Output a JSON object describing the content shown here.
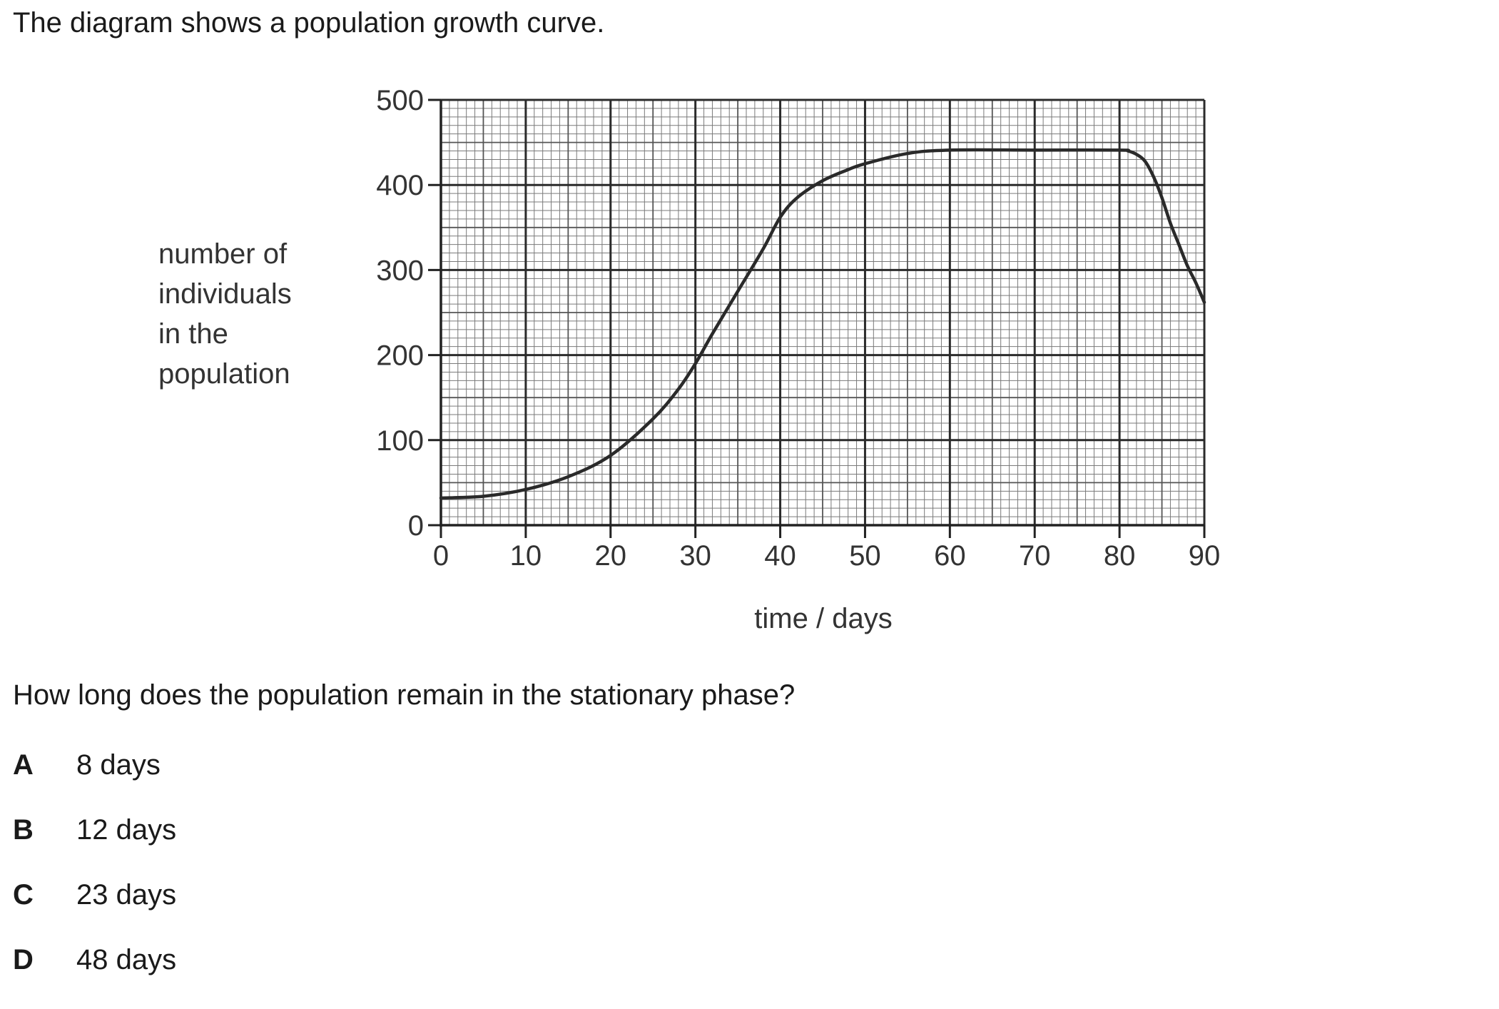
{
  "question": {
    "intro": "The diagram shows a population growth curve.",
    "prompt": "How long does the population remain in the stationary phase?",
    "options": [
      {
        "letter": "A",
        "text": "8 days"
      },
      {
        "letter": "B",
        "text": "12 days"
      },
      {
        "letter": "C",
        "text": "23 days"
      },
      {
        "letter": "D",
        "text": "48 days"
      }
    ]
  },
  "chart_data": {
    "type": "line",
    "title": "",
    "xlabel": "time / days",
    "ylabel_lines": [
      "number of",
      "individuals",
      "in the",
      "population"
    ],
    "xlim": [
      0,
      90
    ],
    "ylim": [
      0,
      500
    ],
    "x_ticks": [
      0,
      10,
      20,
      30,
      40,
      50,
      60,
      70,
      80,
      90
    ],
    "y_ticks": [
      0,
      100,
      200,
      300,
      400,
      500
    ],
    "grid": "graph-paper",
    "line_color": "#2a2a2a",
    "series": [
      {
        "points": [
          [
            0,
            32
          ],
          [
            5,
            34
          ],
          [
            10,
            42
          ],
          [
            15,
            57
          ],
          [
            20,
            82
          ],
          [
            25,
            125
          ],
          [
            28,
            160
          ],
          [
            30,
            190
          ],
          [
            32,
            225
          ],
          [
            35,
            275
          ],
          [
            38,
            325
          ],
          [
            40,
            362
          ],
          [
            42,
            385
          ],
          [
            45,
            405
          ],
          [
            48,
            418
          ],
          [
            50,
            425
          ],
          [
            55,
            437
          ],
          [
            60,
            441
          ],
          [
            70,
            441
          ],
          [
            80,
            441
          ],
          [
            81,
            440
          ],
          [
            82,
            436
          ],
          [
            83,
            428
          ],
          [
            84,
            410
          ],
          [
            85,
            385
          ],
          [
            86,
            355
          ],
          [
            87,
            330
          ],
          [
            88,
            305
          ],
          [
            89,
            285
          ],
          [
            90,
            262
          ]
        ]
      }
    ]
  }
}
